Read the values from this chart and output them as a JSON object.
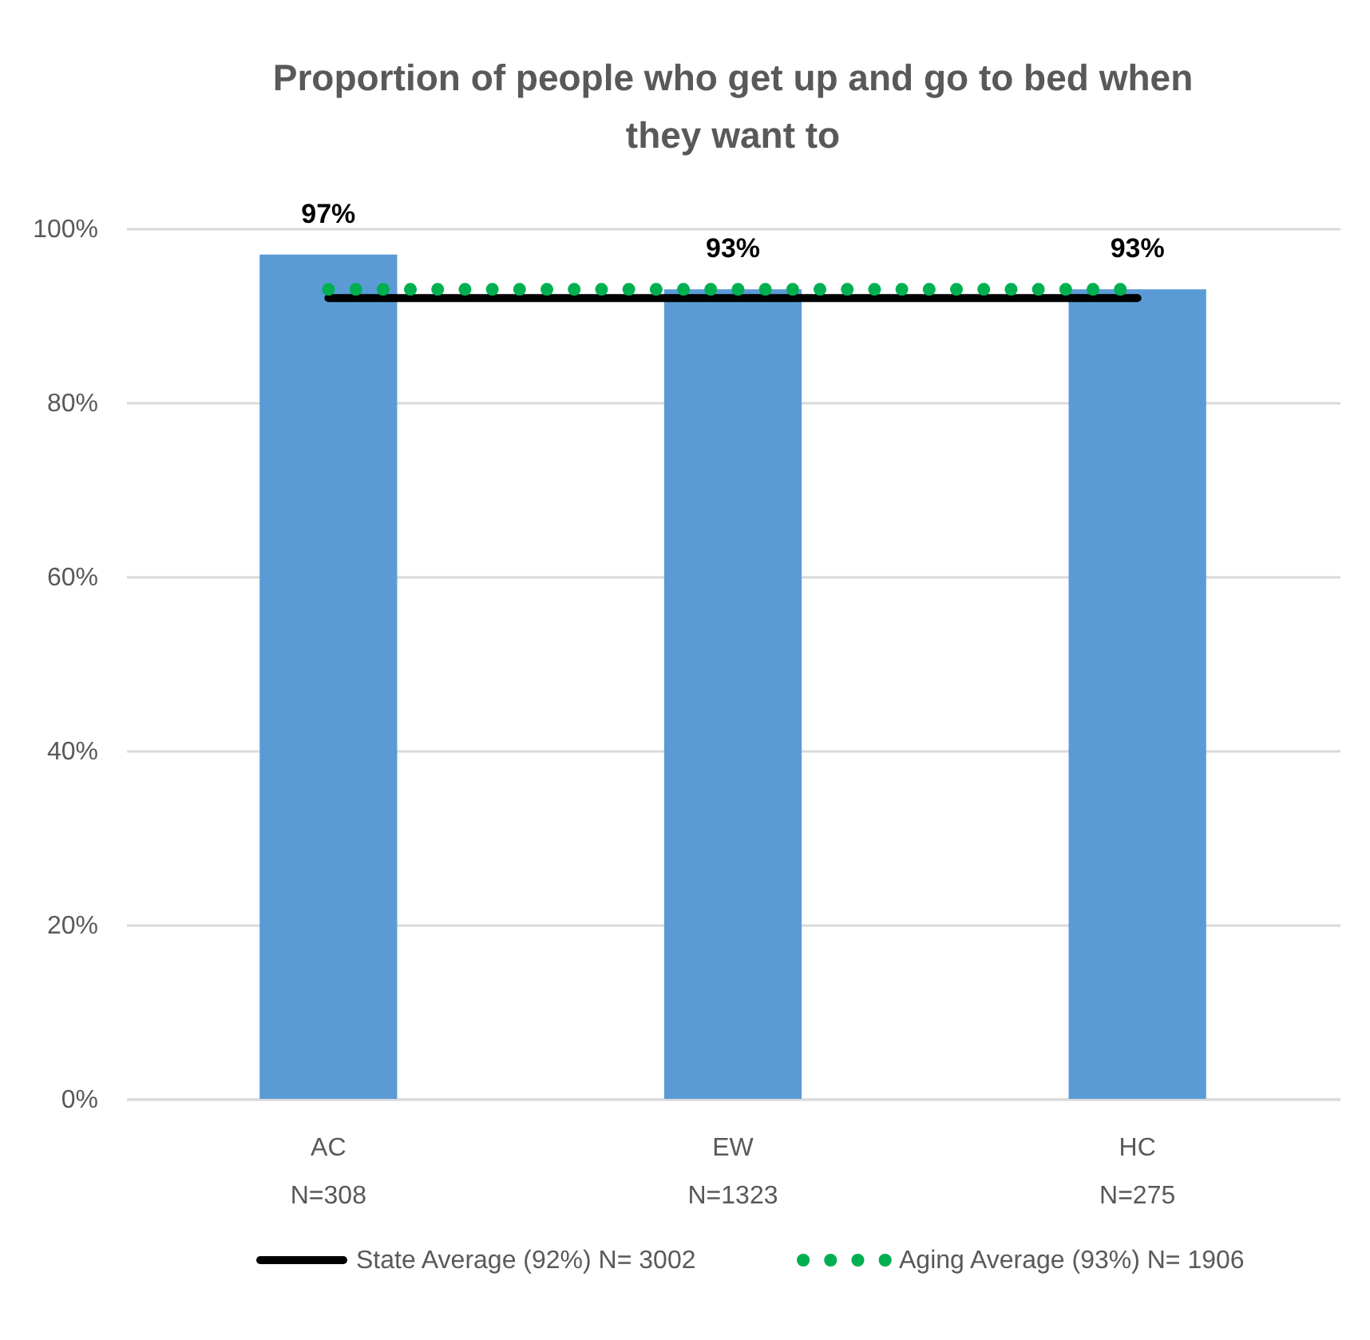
{
  "chart_data": {
    "type": "bar",
    "title": "Proportion of people who get up and go to bed when they want to",
    "categories": [
      "AC\nN=308",
      "EW\nN=1323",
      "HC\nN=275"
    ],
    "series": [
      {
        "color": "#5b9bd5",
        "values": [
          97,
          93,
          93
        ],
        "value_labels": [
          "97%",
          "93%",
          "93%"
        ]
      },
      {
        "type": "line",
        "name": "State Average (92%) N= 3002",
        "color": "#000000",
        "values": [
          92,
          92,
          92
        ],
        "line_style": "solid"
      },
      {
        "type": "line",
        "name": "Aging Average (93%) N= 1906",
        "color": "#00b050",
        "values": [
          93,
          93,
          93
        ],
        "line_style": "dotted"
      }
    ],
    "ylim": [
      0,
      100
    ],
    "yticks": [
      {
        "value": 0,
        "label": "0%"
      },
      {
        "value": 20,
        "label": "20%"
      },
      {
        "value": 40,
        "label": "40%"
      },
      {
        "value": 60,
        "label": "60%"
      },
      {
        "value": 80,
        "label": "80%"
      },
      {
        "value": 100,
        "label": "100%"
      }
    ],
    "grid": "y",
    "legend": "bottom"
  }
}
